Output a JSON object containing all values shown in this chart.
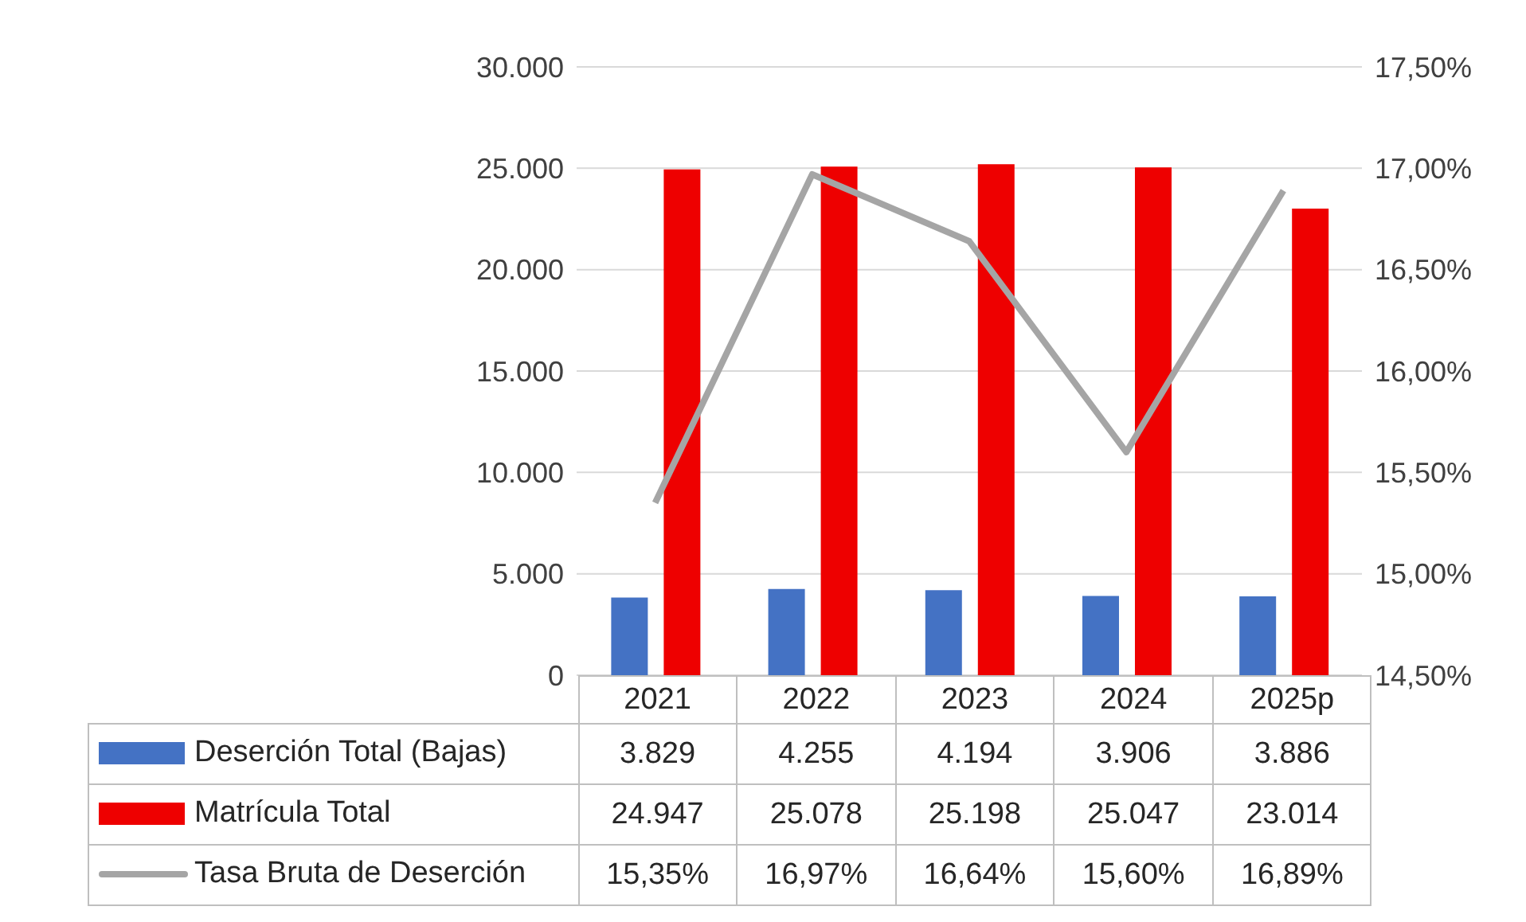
{
  "chart_data": {
    "type": "bar",
    "categories": [
      "2021",
      "2022",
      "2023",
      "2024",
      "2025p"
    ],
    "series": [
      {
        "name": "Deserción Total (Bajas)",
        "color": "#4472c4",
        "values": [
          3829,
          4255,
          4194,
          3906,
          3886
        ],
        "value_labels": [
          "3.829",
          "4.255",
          "4.194",
          "3.906",
          "3.886"
        ]
      },
      {
        "name": "Matrícula Total",
        "color": "#ee0000",
        "values": [
          24947,
          25078,
          25198,
          25047,
          23014
        ],
        "value_labels": [
          "24.947",
          "25.078",
          "25.198",
          "25.047",
          "23.014"
        ]
      },
      {
        "name": "Tasa Bruta de Deserción",
        "type": "line",
        "axis": "y2",
        "color": "#a5a5a5",
        "values": [
          15.35,
          16.97,
          16.64,
          15.6,
          16.89
        ],
        "value_labels": [
          "15,35%",
          "16,97%",
          "16,64%",
          "15,60%",
          "16,89%"
        ]
      }
    ],
    "ylim": [
      0,
      30000
    ],
    "yticks": [
      {
        "value": 0,
        "label": "0"
      },
      {
        "value": 5000,
        "label": "5.000"
      },
      {
        "value": 10000,
        "label": "10.000"
      },
      {
        "value": 15000,
        "label": "15.000"
      },
      {
        "value": 20000,
        "label": "20.000"
      },
      {
        "value": 25000,
        "label": "25.000"
      },
      {
        "value": 30000,
        "label": "30.000"
      }
    ],
    "y2lim": [
      14.5,
      17.5
    ],
    "y2ticks": [
      {
        "value": 14.5,
        "label": "14,50%"
      },
      {
        "value": 15,
        "label": "15,00%"
      },
      {
        "value": 15.5,
        "label": "15,50%"
      },
      {
        "value": 16,
        "label": "16,00%"
      },
      {
        "value": 16.5,
        "label": "16,50%"
      },
      {
        "value": 17,
        "label": "17,00%"
      },
      {
        "value": 17.5,
        "label": "17,50%"
      }
    ],
    "grid": "y",
    "legend": "bottom",
    "marker": "none"
  }
}
